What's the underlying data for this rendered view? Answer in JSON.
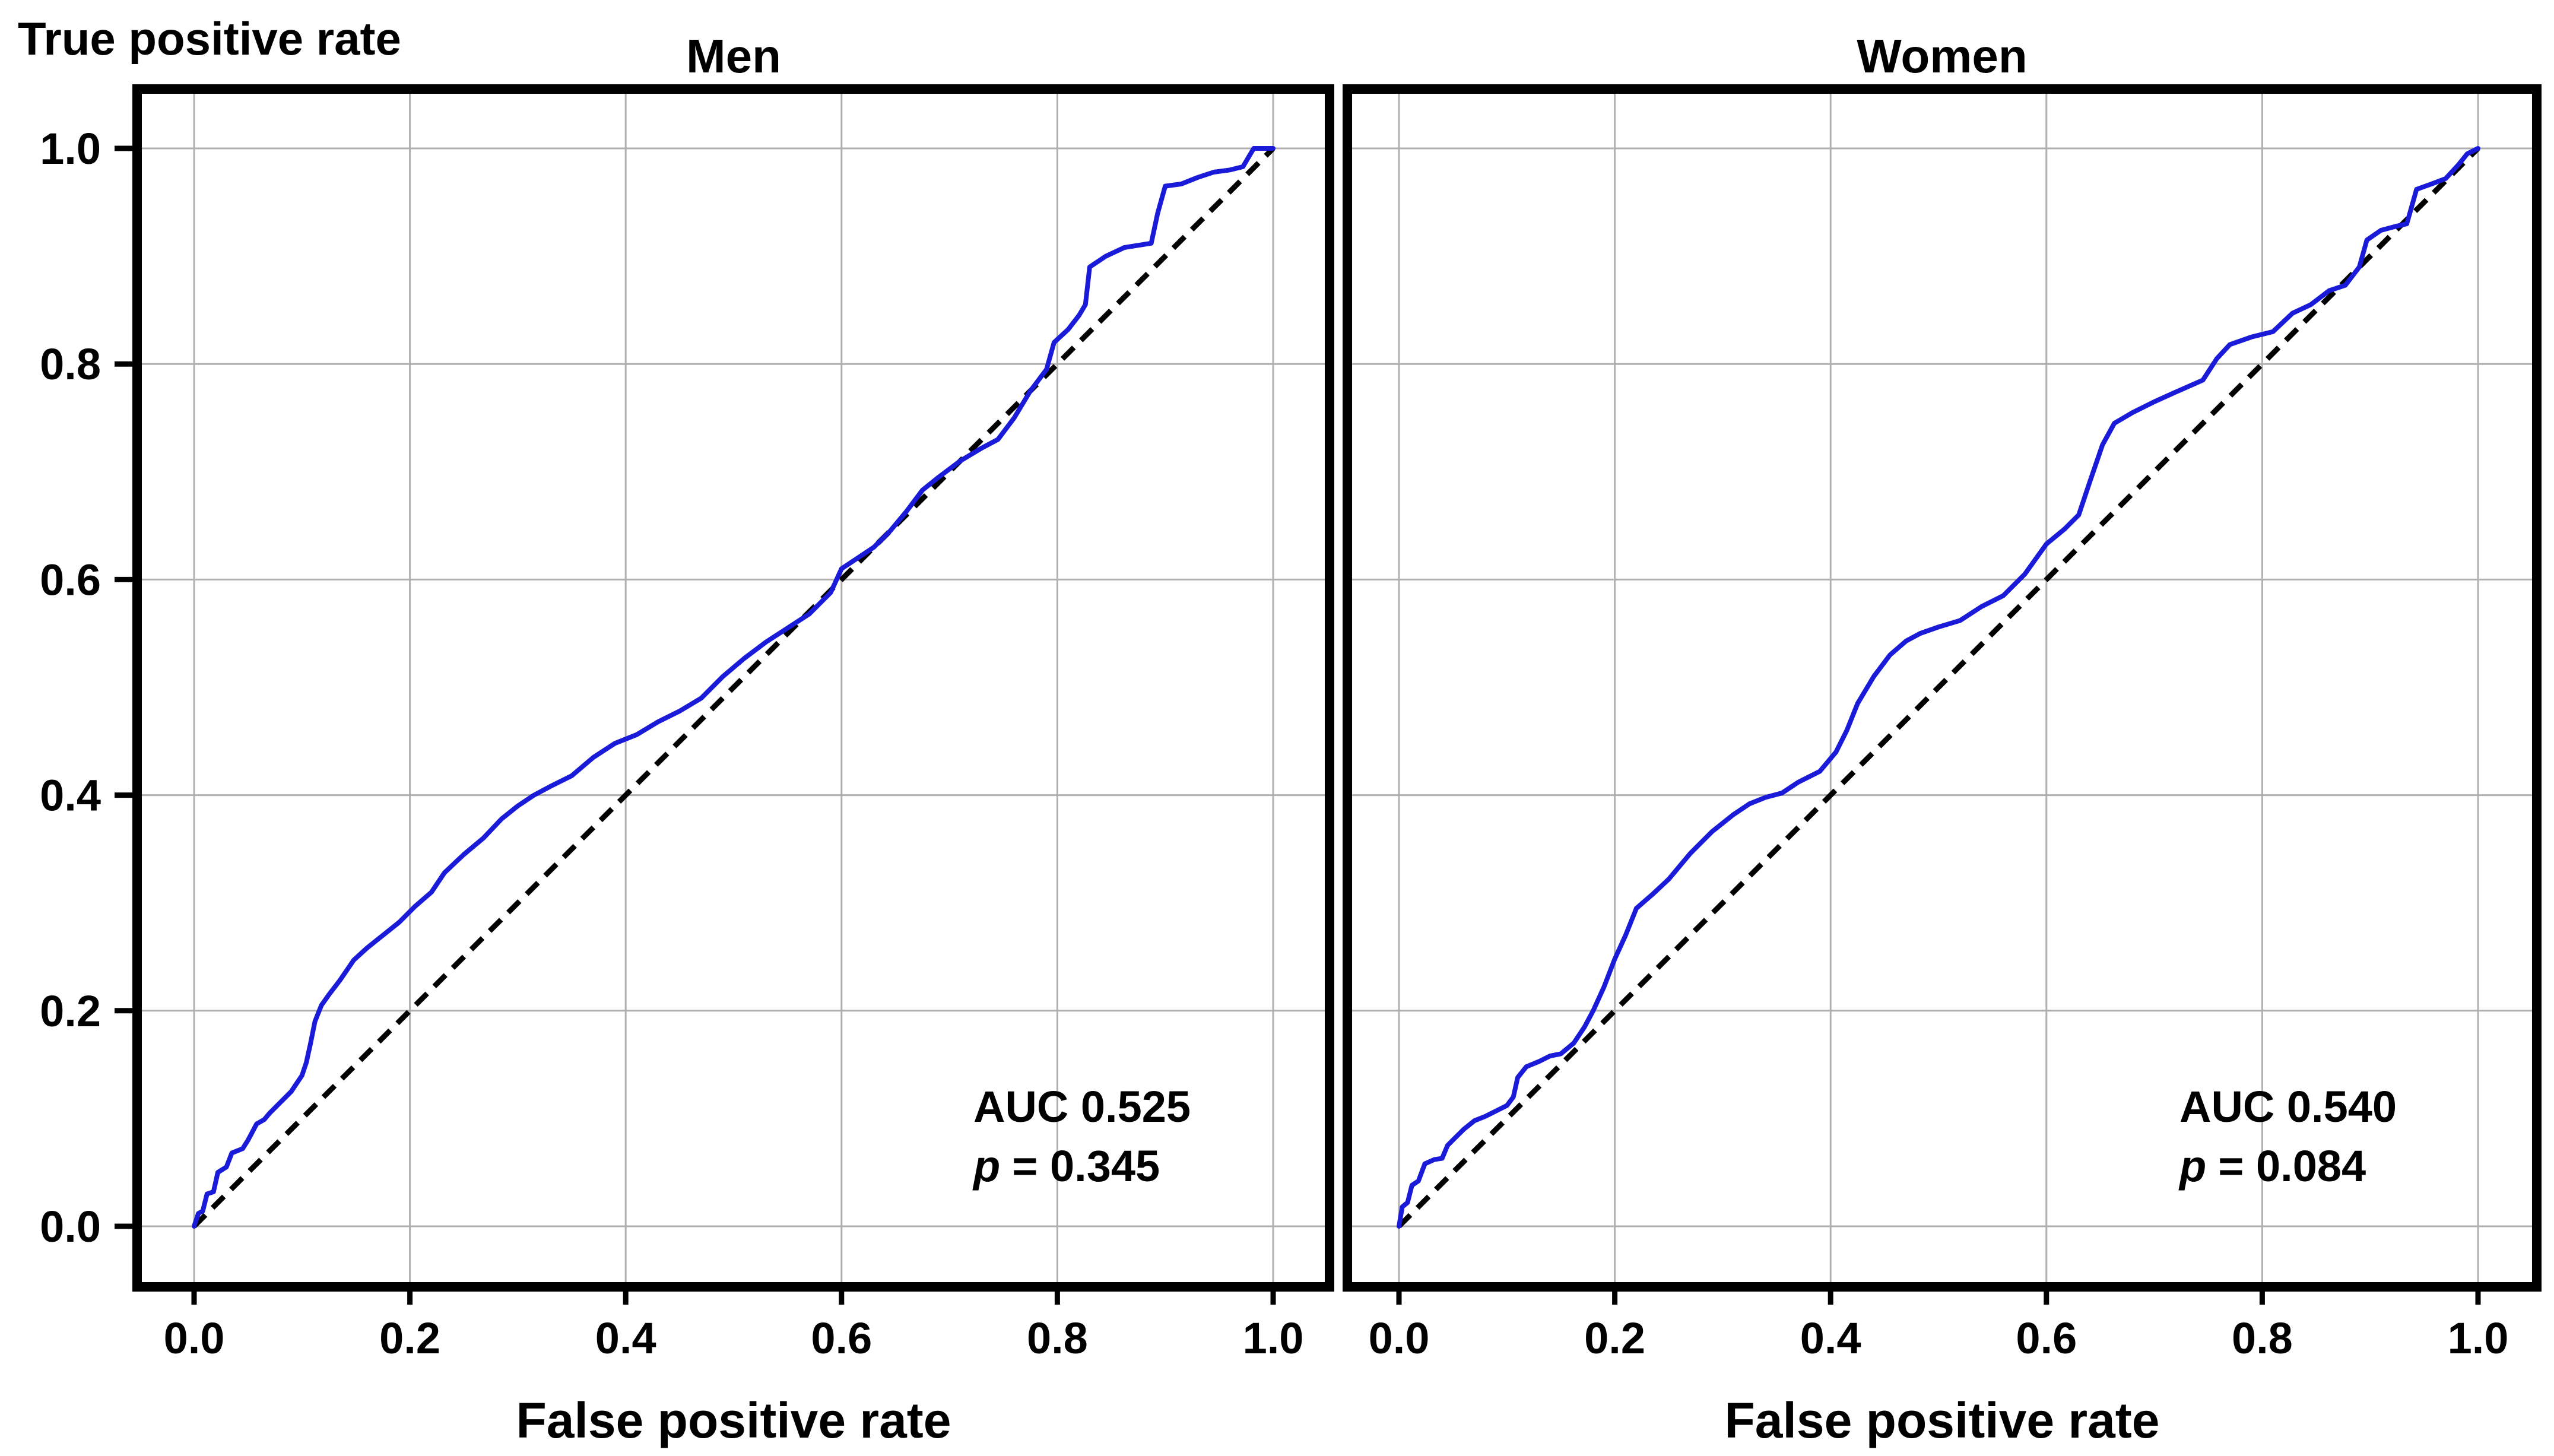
{
  "figure": {
    "ylabel_top": "True positive rate",
    "background_color": "#ffffff",
    "curve_color": "#1a1ad9",
    "diagonal_color": "#000000",
    "grid_color": "#b0b0b0",
    "spine_color": "#000000"
  },
  "chart_data": [
    {
      "type": "line",
      "title": "Men",
      "xlabel": "False positive rate",
      "ylabel": "True positive rate",
      "xlim": [
        -0.05,
        1.05
      ],
      "ylim": [
        -0.056,
        1.05
      ],
      "grid": true,
      "xticks": [
        0,
        0.2,
        0.4,
        0.6,
        0.8,
        1.0
      ],
      "xtick_labels": [
        "0.0",
        "0.2",
        "0.4",
        "0.6",
        "0.8",
        "1.0"
      ],
      "yticks": [
        0,
        0.2,
        0.4,
        0.6,
        0.8,
        1.0
      ],
      "ytick_labels": [
        "0.0",
        "0.2",
        "0.4",
        "0.6",
        "0.8",
        "1.0"
      ],
      "show_ytick_labels": true,
      "annotations": {
        "auc": "AUC 0.525",
        "p_var": "p",
        "p_rest": "= 0.345"
      },
      "series": [
        {
          "name": "ROC curve",
          "style": "solid",
          "points": [
            [
              0,
              0
            ],
            [
              0.004,
              0.012
            ],
            [
              0.008,
              0.014
            ],
            [
              0.012,
              0.03
            ],
            [
              0.018,
              0.032
            ],
            [
              0.022,
              0.05
            ],
            [
              0.03,
              0.055
            ],
            [
              0.035,
              0.068
            ],
            [
              0.045,
              0.072
            ],
            [
              0.05,
              0.08
            ],
            [
              0.058,
              0.095
            ],
            [
              0.065,
              0.099
            ],
            [
              0.07,
              0.105
            ],
            [
              0.08,
              0.115
            ],
            [
              0.09,
              0.125
            ],
            [
              0.1,
              0.14
            ],
            [
              0.104,
              0.152
            ],
            [
              0.108,
              0.17
            ],
            [
              0.112,
              0.19
            ],
            [
              0.118,
              0.205
            ],
            [
              0.125,
              0.215
            ],
            [
              0.135,
              0.228
            ],
            [
              0.148,
              0.247
            ],
            [
              0.16,
              0.258
            ],
            [
              0.175,
              0.27
            ],
            [
              0.19,
              0.282
            ],
            [
              0.205,
              0.297
            ],
            [
              0.22,
              0.31
            ],
            [
              0.232,
              0.328
            ],
            [
              0.25,
              0.345
            ],
            [
              0.268,
              0.36
            ],
            [
              0.285,
              0.378
            ],
            [
              0.3,
              0.39
            ],
            [
              0.315,
              0.4
            ],
            [
              0.33,
              0.408
            ],
            [
              0.35,
              0.418
            ],
            [
              0.37,
              0.435
            ],
            [
              0.39,
              0.448
            ],
            [
              0.41,
              0.456
            ],
            [
              0.43,
              0.468
            ],
            [
              0.45,
              0.478
            ],
            [
              0.47,
              0.49
            ],
            [
              0.49,
              0.51
            ],
            [
              0.51,
              0.527
            ],
            [
              0.53,
              0.542
            ],
            [
              0.55,
              0.555
            ],
            [
              0.57,
              0.568
            ],
            [
              0.59,
              0.588
            ],
            [
              0.6,
              0.61
            ],
            [
              0.615,
              0.62
            ],
            [
              0.63,
              0.63
            ],
            [
              0.645,
              0.645
            ],
            [
              0.66,
              0.663
            ],
            [
              0.675,
              0.683
            ],
            [
              0.69,
              0.695
            ],
            [
              0.71,
              0.71
            ],
            [
              0.73,
              0.722
            ],
            [
              0.745,
              0.73
            ],
            [
              0.76,
              0.75
            ],
            [
              0.775,
              0.775
            ],
            [
              0.79,
              0.795
            ],
            [
              0.797,
              0.82
            ],
            [
              0.81,
              0.832
            ],
            [
              0.82,
              0.845
            ],
            [
              0.826,
              0.855
            ],
            [
              0.83,
              0.89
            ],
            [
              0.845,
              0.9
            ],
            [
              0.862,
              0.908
            ],
            [
              0.887,
              0.912
            ],
            [
              0.893,
              0.94
            ],
            [
              0.9,
              0.965
            ],
            [
              0.915,
              0.967
            ],
            [
              0.93,
              0.973
            ],
            [
              0.945,
              0.978
            ],
            [
              0.96,
              0.98
            ],
            [
              0.972,
              0.983
            ],
            [
              0.982,
              1.0
            ],
            [
              1,
              1
            ]
          ]
        },
        {
          "name": "Chance diagonal",
          "style": "dashed",
          "points": [
            [
              0,
              0
            ],
            [
              1,
              1
            ]
          ]
        }
      ]
    },
    {
      "type": "line",
      "title": "Women",
      "xlabel": "False positive rate",
      "ylabel": "True positive rate",
      "xlim": [
        -0.05,
        1.05
      ],
      "ylim": [
        -0.056,
        1.05
      ],
      "grid": true,
      "xticks": [
        0,
        0.2,
        0.4,
        0.6,
        0.8,
        1.0
      ],
      "xtick_labels": [
        "0.0",
        "0.2",
        "0.4",
        "0.6",
        "0.8",
        "1.0"
      ],
      "yticks": [
        0,
        0.2,
        0.4,
        0.6,
        0.8,
        1.0
      ],
      "ytick_labels": [
        "0.0",
        "0.2",
        "0.4",
        "0.6",
        "0.8",
        "1.0"
      ],
      "show_ytick_labels": false,
      "annotations": {
        "auc": "AUC 0.540",
        "p_var": "p",
        "p_rest": "= 0.084"
      },
      "series": [
        {
          "name": "ROC curve",
          "style": "solid",
          "points": [
            [
              0,
              0
            ],
            [
              0.003,
              0.018
            ],
            [
              0.008,
              0.022
            ],
            [
              0.012,
              0.038
            ],
            [
              0.018,
              0.042
            ],
            [
              0.024,
              0.058
            ],
            [
              0.033,
              0.062
            ],
            [
              0.04,
              0.063
            ],
            [
              0.045,
              0.075
            ],
            [
              0.052,
              0.082
            ],
            [
              0.06,
              0.09
            ],
            [
              0.07,
              0.098
            ],
            [
              0.08,
              0.102
            ],
            [
              0.09,
              0.107
            ],
            [
              0.1,
              0.112
            ],
            [
              0.106,
              0.12
            ],
            [
              0.11,
              0.138
            ],
            [
              0.118,
              0.148
            ],
            [
              0.13,
              0.153
            ],
            [
              0.14,
              0.158
            ],
            [
              0.15,
              0.16
            ],
            [
              0.162,
              0.17
            ],
            [
              0.172,
              0.185
            ],
            [
              0.18,
              0.2
            ],
            [
              0.19,
              0.222
            ],
            [
              0.2,
              0.248
            ],
            [
              0.21,
              0.27
            ],
            [
              0.22,
              0.295
            ],
            [
              0.235,
              0.308
            ],
            [
              0.25,
              0.322
            ],
            [
              0.27,
              0.346
            ],
            [
              0.29,
              0.366
            ],
            [
              0.31,
              0.382
            ],
            [
              0.325,
              0.392
            ],
            [
              0.34,
              0.398
            ],
            [
              0.355,
              0.402
            ],
            [
              0.37,
              0.412
            ],
            [
              0.39,
              0.422
            ],
            [
              0.405,
              0.44
            ],
            [
              0.415,
              0.46
            ],
            [
              0.425,
              0.485
            ],
            [
              0.44,
              0.51
            ],
            [
              0.455,
              0.53
            ],
            [
              0.47,
              0.543
            ],
            [
              0.483,
              0.55
            ],
            [
              0.5,
              0.556
            ],
            [
              0.52,
              0.562
            ],
            [
              0.54,
              0.575
            ],
            [
              0.56,
              0.585
            ],
            [
              0.58,
              0.605
            ],
            [
              0.6,
              0.633
            ],
            [
              0.617,
              0.647
            ],
            [
              0.63,
              0.66
            ],
            [
              0.64,
              0.69
            ],
            [
              0.652,
              0.725
            ],
            [
              0.663,
              0.745
            ],
            [
              0.68,
              0.755
            ],
            [
              0.7,
              0.765
            ],
            [
              0.72,
              0.774
            ],
            [
              0.745,
              0.785
            ],
            [
              0.758,
              0.805
            ],
            [
              0.77,
              0.818
            ],
            [
              0.79,
              0.825
            ],
            [
              0.81,
              0.83
            ],
            [
              0.828,
              0.847
            ],
            [
              0.845,
              0.855
            ],
            [
              0.862,
              0.868
            ],
            [
              0.877,
              0.873
            ],
            [
              0.89,
              0.89
            ],
            [
              0.897,
              0.915
            ],
            [
              0.91,
              0.924
            ],
            [
              0.925,
              0.928
            ],
            [
              0.934,
              0.93
            ],
            [
              0.943,
              0.962
            ],
            [
              0.957,
              0.967
            ],
            [
              0.97,
              0.972
            ],
            [
              0.982,
              0.985
            ],
            [
              0.99,
              0.995
            ],
            [
              1,
              1
            ]
          ]
        },
        {
          "name": "Chance diagonal",
          "style": "dashed",
          "points": [
            [
              0,
              0
            ],
            [
              1,
              1
            ]
          ]
        }
      ]
    }
  ]
}
